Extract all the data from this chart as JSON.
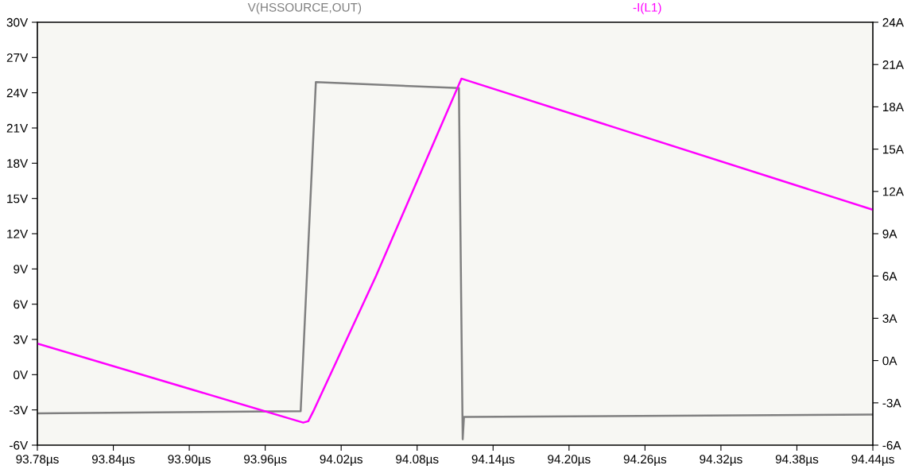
{
  "chart_data": {
    "type": "line",
    "xlim": [
      93.78,
      94.44
    ],
    "xticks": [
      {
        "value": 93.78,
        "label": "93.78µs"
      },
      {
        "value": 93.84,
        "label": "93.84µs"
      },
      {
        "value": 93.9,
        "label": "93.90µs"
      },
      {
        "value": 93.96,
        "label": "93.96µs"
      },
      {
        "value": 94.02,
        "label": "94.02µs"
      },
      {
        "value": 94.08,
        "label": "94.08µs"
      },
      {
        "value": 94.14,
        "label": "94.14µs"
      },
      {
        "value": 94.2,
        "label": "94.20µs"
      },
      {
        "value": 94.26,
        "label": "94.26µs"
      },
      {
        "value": 94.32,
        "label": "94.32µs"
      },
      {
        "value": 94.38,
        "label": "94.38µs"
      },
      {
        "value": 94.44,
        "label": "94.44µs"
      }
    ],
    "ylim": [
      -6,
      30
    ],
    "yticks": [
      {
        "value": -6,
        "label": "-6V"
      },
      {
        "value": -3,
        "label": "-3V"
      },
      {
        "value": 0,
        "label": "0V"
      },
      {
        "value": 3,
        "label": "3V"
      },
      {
        "value": 6,
        "label": "6V"
      },
      {
        "value": 9,
        "label": "9V"
      },
      {
        "value": 12,
        "label": "12V"
      },
      {
        "value": 15,
        "label": "15V"
      },
      {
        "value": 18,
        "label": "18V"
      },
      {
        "value": 21,
        "label": "21V"
      },
      {
        "value": 24,
        "label": "24V"
      },
      {
        "value": 27,
        "label": "27V"
      },
      {
        "value": 30,
        "label": "30V"
      }
    ],
    "y2lim": [
      -6,
      24
    ],
    "y2ticks": [
      {
        "value": -6,
        "label": "-6A"
      },
      {
        "value": -3,
        "label": "-3A"
      },
      {
        "value": 0,
        "label": "0A"
      },
      {
        "value": 3,
        "label": "3A"
      },
      {
        "value": 6,
        "label": "6A"
      },
      {
        "value": 9,
        "label": "9A"
      },
      {
        "value": 12,
        "label": "12A"
      },
      {
        "value": 15,
        "label": "15A"
      },
      {
        "value": 18,
        "label": "18A"
      },
      {
        "value": 21,
        "label": "21A"
      },
      {
        "value": 24,
        "label": "24A"
      }
    ],
    "grid": false,
    "legend": "top",
    "series": [
      {
        "name": "V(HSSOURCE,OUT)",
        "color": "#808080",
        "x": [
          93.78,
          93.988,
          94.0,
          94.113,
          94.116,
          94.117,
          94.44
        ],
        "values": [
          -3.3,
          -3.1,
          24.9,
          24.4,
          -5.5,
          -3.6,
          -3.4
        ]
      },
      {
        "name": "-I(L1)",
        "color": "#ff00ff",
        "axis": "y2",
        "x": [
          93.78,
          93.99,
          93.994,
          93.998,
          94.0475,
          94.115,
          94.44
        ],
        "values": [
          1.2,
          -4.4,
          -4.3,
          -3.6,
          6.0,
          20.0,
          10.7
        ]
      }
    ]
  }
}
